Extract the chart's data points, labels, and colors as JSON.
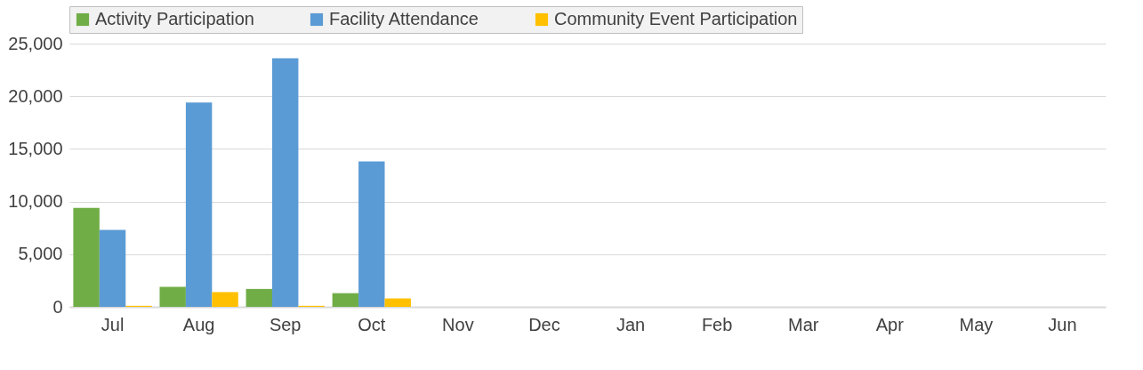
{
  "chart_data": {
    "type": "bar",
    "categories": [
      "Jul",
      "Aug",
      "Sep",
      "Oct",
      "Nov",
      "Dec",
      "Jan",
      "Feb",
      "Mar",
      "Apr",
      "May",
      "Jun"
    ],
    "series": [
      {
        "name": "Activity Participation",
        "color": "#70ad47",
        "values": [
          9400,
          1900,
          1700,
          1300,
          null,
          null,
          null,
          null,
          null,
          null,
          null,
          null
        ]
      },
      {
        "name": "Facility Attendance",
        "color": "#5b9bd5",
        "values": [
          7300,
          19400,
          23600,
          13800,
          null,
          null,
          null,
          null,
          null,
          null,
          null,
          null
        ]
      },
      {
        "name": "Community Event Participation",
        "color": "#ffc000",
        "values": [
          100,
          1400,
          100,
          800,
          null,
          null,
          null,
          null,
          null,
          null,
          null,
          null
        ]
      }
    ],
    "ylim": [
      0,
      25000
    ],
    "yticks": [
      {
        "value": 0,
        "label": "0"
      },
      {
        "value": 5000,
        "label": "5,000"
      },
      {
        "value": 10000,
        "label": "10,000"
      },
      {
        "value": 15000,
        "label": "15,000"
      },
      {
        "value": 20000,
        "label": "20,000"
      },
      {
        "value": 25000,
        "label": "25,000"
      }
    ],
    "grid": "y",
    "legend": "top"
  }
}
